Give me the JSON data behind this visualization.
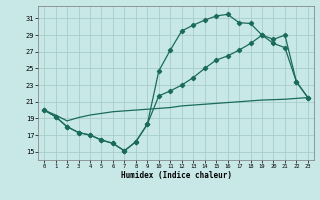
{
  "xlabel": "Humidex (Indice chaleur)",
  "bg_color": "#c8e8e8",
  "grid_color": "#a8cccc",
  "line_color": "#1a6b5a",
  "markersize": 2.2,
  "linewidth": 0.9,
  "xlim": [
    -0.5,
    23.5
  ],
  "ylim": [
    14.0,
    32.5
  ],
  "xticks": [
    0,
    1,
    2,
    3,
    4,
    5,
    6,
    7,
    8,
    9,
    10,
    11,
    12,
    13,
    14,
    15,
    16,
    17,
    18,
    19,
    20,
    21,
    22,
    23
  ],
  "yticks": [
    15,
    17,
    19,
    21,
    23,
    25,
    27,
    29,
    31
  ],
  "curve1_x": [
    0,
    1,
    2,
    3,
    4,
    5,
    6,
    7,
    8,
    9,
    10,
    11,
    12,
    13,
    14,
    15,
    16,
    17,
    18,
    19,
    20,
    21,
    22,
    23
  ],
  "curve1_y": [
    20.0,
    19.2,
    18.0,
    17.3,
    17.0,
    16.4,
    16.0,
    15.1,
    16.2,
    18.3,
    24.7,
    27.2,
    29.5,
    30.2,
    30.8,
    31.3,
    31.5,
    30.5,
    30.4,
    29.0,
    28.0,
    27.5,
    23.4,
    21.5
  ],
  "curve2_x": [
    0,
    1,
    2,
    3,
    4,
    5,
    6,
    7,
    8,
    9,
    10,
    11,
    12,
    13,
    14,
    15,
    16,
    17,
    18,
    19,
    20,
    21,
    22,
    23
  ],
  "curve2_y": [
    20.0,
    19.2,
    18.0,
    17.3,
    17.0,
    16.4,
    16.0,
    15.1,
    16.2,
    18.3,
    21.7,
    22.3,
    23.0,
    23.9,
    25.0,
    26.0,
    26.5,
    27.2,
    28.0,
    29.0,
    28.5,
    29.0,
    23.4,
    21.5
  ],
  "curve3_x": [
    0,
    1,
    2,
    3,
    4,
    5,
    6,
    7,
    8,
    9,
    10,
    11,
    12,
    13,
    14,
    15,
    16,
    17,
    18,
    19,
    20,
    21,
    22,
    23
  ],
  "curve3_y": [
    20.0,
    19.4,
    18.7,
    19.1,
    19.4,
    19.6,
    19.8,
    19.9,
    20.0,
    20.1,
    20.2,
    20.3,
    20.5,
    20.6,
    20.7,
    20.8,
    20.9,
    21.0,
    21.1,
    21.2,
    21.25,
    21.3,
    21.4,
    21.5
  ]
}
